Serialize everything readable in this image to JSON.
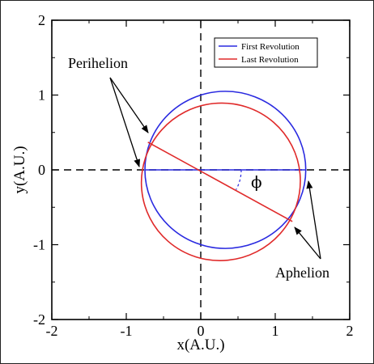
{
  "chart_data": {
    "type": "line",
    "title": "",
    "xlabel": "x(A.U.)",
    "ylabel": "y(A.U.)",
    "xlim": [
      -2,
      2
    ],
    "ylim": [
      -2,
      2
    ],
    "xticks": [
      "-2",
      "-1",
      "0",
      "1",
      "2"
    ],
    "yticks": [
      "-2",
      "-1",
      "0",
      "1",
      "2"
    ],
    "grid": false,
    "legend_position": "top-right",
    "series": [
      {
        "name": "First Revolution",
        "color": "#2a2ae0",
        "ellipse": {
          "cx": 0.33,
          "cy": 0.0,
          "rx": 1.08,
          "ry": 1.05
        },
        "line_of_apsides": {
          "from": [
            -0.75,
            0.0
          ],
          "to": [
            1.41,
            0.0
          ]
        }
      },
      {
        "name": "Last Revolution",
        "color": "#e02a2a",
        "ellipse": {
          "cx": 0.27,
          "cy": -0.16,
          "rx": 1.07,
          "ry": 1.05,
          "rotation_deg": -27
        },
        "line_of_apsides": {
          "from": [
            -0.71,
            0.37
          ],
          "to": [
            1.23,
            -0.69
          ]
        }
      }
    ],
    "annotations": {
      "perihelion": "Perihelion",
      "aphelion": "Aphelion",
      "angle": "ϕ"
    }
  }
}
